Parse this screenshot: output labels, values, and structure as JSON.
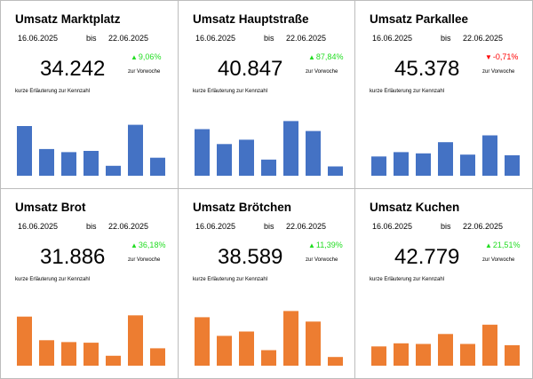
{
  "dashboard": {
    "bis_label": "bis",
    "change_label": "zur Vorwoche",
    "explanation": "kurze Erläuterung zur Kennzahl",
    "colors": {
      "bar_blue": "#4472c4",
      "bar_orange": "#ed7d31",
      "positive": "#22dd22",
      "negative": "#ff0000"
    }
  },
  "cards": [
    {
      "title": "Umsatz Marktplatz",
      "date_from": "16.06.2025",
      "date_to": "22.06.2025",
      "value": "34.242",
      "change": "9,06%",
      "trend": "up",
      "arrow": "▲"
    },
    {
      "title": "Umsatz Hauptstraße",
      "date_from": "16.06.2025",
      "date_to": "22.06.2025",
      "value": "40.847",
      "change": "87,84%",
      "trend": "up",
      "arrow": "▲"
    },
    {
      "title": "Umsatz Parkallee",
      "date_from": "16.06.2025",
      "date_to": "22.06.2025",
      "value": "45.378",
      "change": "-0,71%",
      "trend": "down",
      "arrow": "▼"
    },
    {
      "title": "Umsatz Brot",
      "date_from": "16.06.2025",
      "date_to": "22.06.2025",
      "value": "31.886",
      "change": "36,18%",
      "trend": "up",
      "arrow": "▲"
    },
    {
      "title": "Umsatz Brötchen",
      "date_from": "16.06.2025",
      "date_to": "22.06.2025",
      "value": "38.589",
      "change": "11,39%",
      "trend": "up",
      "arrow": "▲"
    },
    {
      "title": "Umsatz Kuchen",
      "date_from": "16.06.2025",
      "date_to": "22.06.2025",
      "value": "42.779",
      "change": "21,51%",
      "trend": "up",
      "arrow": "▲"
    }
  ],
  "chart_data": [
    {
      "type": "bar",
      "series": [
        {
          "values": [
            8.0,
            4.3,
            3.8,
            4.0,
            1.6,
            8.2,
            2.9
          ]
        }
      ],
      "ylim": [
        0,
        10
      ],
      "color": "#4472c4",
      "grid": false
    },
    {
      "type": "bar",
      "series": [
        {
          "values": [
            7.5,
            5.1,
            5.8,
            2.6,
            8.8,
            7.2,
            1.5
          ]
        }
      ],
      "ylim": [
        0,
        10
      ],
      "color": "#4472c4",
      "grid": false
    },
    {
      "type": "bar",
      "series": [
        {
          "values": [
            3.1,
            3.8,
            3.6,
            5.4,
            3.4,
            6.5,
            3.3
          ]
        }
      ],
      "ylim": [
        0,
        10
      ],
      "color": "#4472c4",
      "grid": false
    },
    {
      "type": "bar",
      "series": [
        {
          "values": [
            7.9,
            4.1,
            3.8,
            3.7,
            1.6,
            8.1,
            2.8
          ]
        }
      ],
      "ylim": [
        0,
        10
      ],
      "color": "#ed7d31",
      "grid": false
    },
    {
      "type": "bar",
      "series": [
        {
          "values": [
            7.8,
            4.8,
            5.5,
            2.5,
            8.8,
            7.1,
            1.4
          ]
        }
      ],
      "ylim": [
        0,
        10
      ],
      "color": "#ed7d31",
      "grid": false
    },
    {
      "type": "bar",
      "series": [
        {
          "values": [
            3.1,
            3.6,
            3.5,
            5.1,
            3.5,
            6.6,
            3.3
          ]
        }
      ],
      "ylim": [
        0,
        10
      ],
      "color": "#ed7d31",
      "grid": false
    }
  ]
}
